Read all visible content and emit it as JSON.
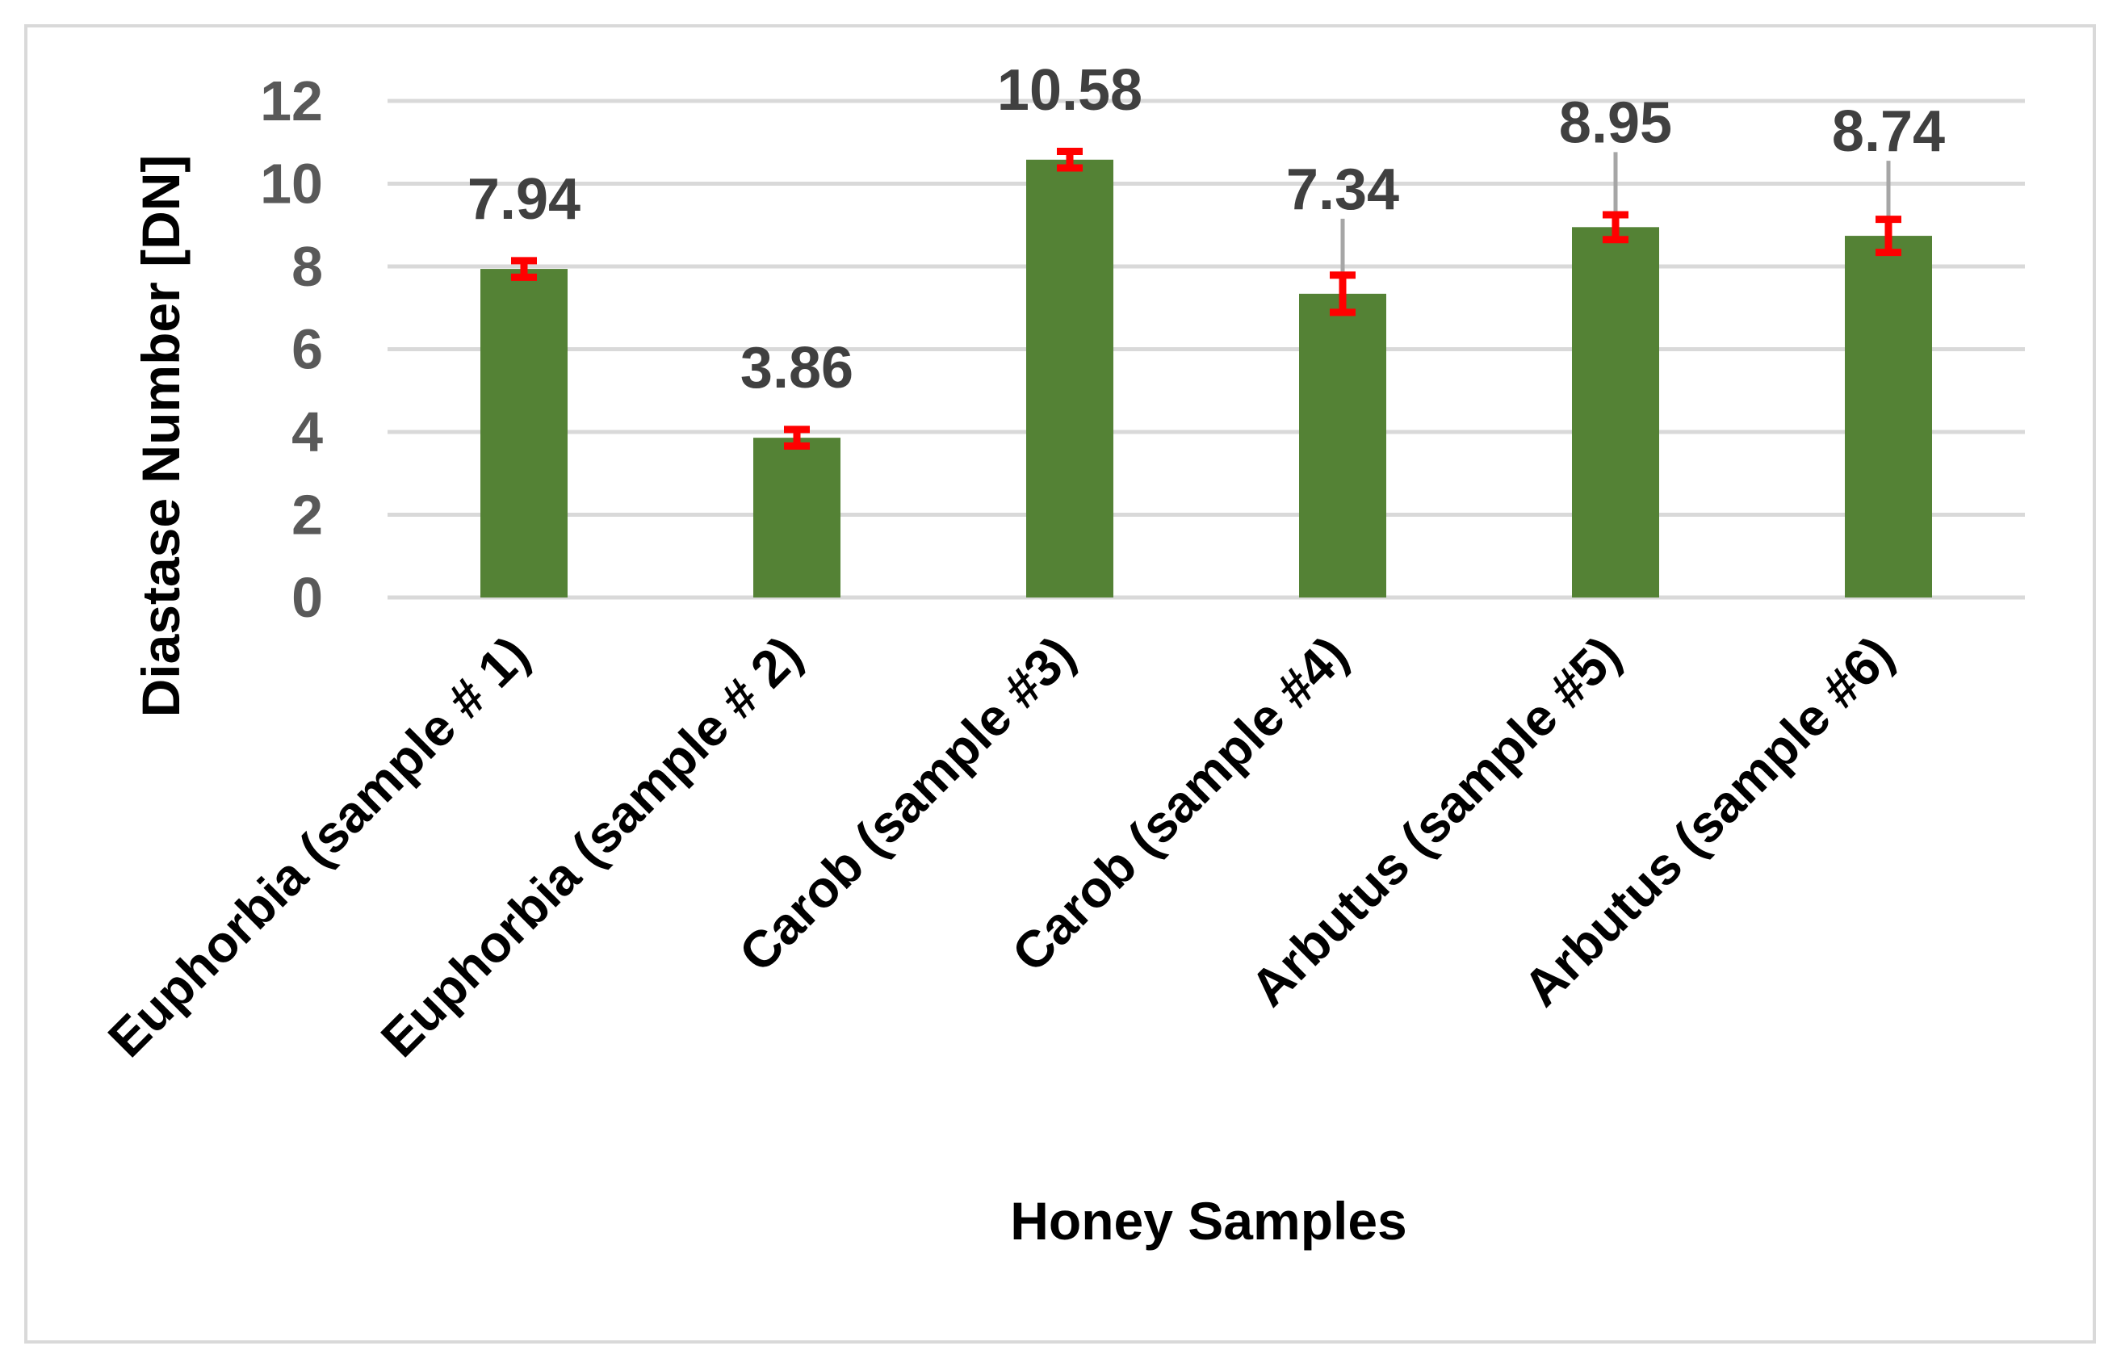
{
  "chart_data": {
    "type": "bar",
    "title": "",
    "xlabel": "Honey Samples",
    "ylabel": "Diastase Number [DN]",
    "ylim": [
      0,
      12
    ],
    "yticks": [
      0,
      2,
      4,
      6,
      8,
      10,
      12
    ],
    "grid": true,
    "categories": [
      "Euphorbia (sample # 1)",
      "Euphorbia (sample # 2)",
      "Carob (sample #3)",
      "Carob (sample #4)",
      "Arbutus (sample #5)",
      "Arbutus (sample #6)"
    ],
    "values": [
      7.94,
      3.86,
      10.58,
      7.34,
      8.95,
      8.74
    ],
    "value_labels": [
      "7.94",
      "3.86",
      "10.58",
      "7.34",
      "8.95",
      "8.74"
    ],
    "errors": [
      0.2,
      0.2,
      0.2,
      0.45,
      0.3,
      0.4
    ],
    "colors": {
      "bar": "#548235",
      "error_bar": "#ff0000",
      "leader_line": "#a6a6a6",
      "grid": "#d9d9d9"
    }
  }
}
